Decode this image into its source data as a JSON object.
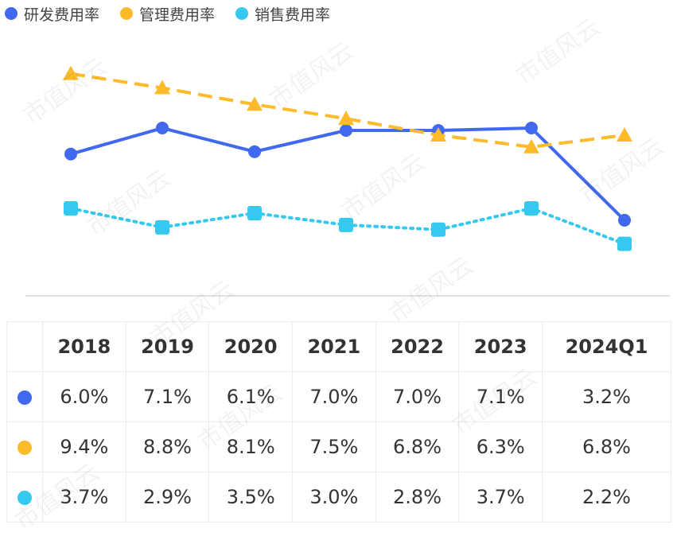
{
  "colors": {
    "rd": "#4169f0",
    "admin": "#fdbb2c",
    "sales": "#35c9f0",
    "axis": "#e3e3e3"
  },
  "watermark_text": "市值风云",
  "chart_data": {
    "type": "line",
    "categories": [
      "2018",
      "2019",
      "2020",
      "2021",
      "2022",
      "2023",
      "2024Q1"
    ],
    "series": [
      {
        "name": "研发费用率",
        "values": [
          6.0,
          7.1,
          6.1,
          7.0,
          7.0,
          7.1,
          3.2
        ],
        "labels": [
          "6.0%",
          "7.1%",
          "6.1%",
          "7.0%",
          "7.0%",
          "7.1%",
          "3.2%"
        ],
        "marker": "circle",
        "line": "solid",
        "color": "#4169f0"
      },
      {
        "name": "管理费用率",
        "values": [
          9.4,
          8.8,
          8.1,
          7.5,
          6.8,
          6.3,
          6.8
        ],
        "labels": [
          "9.4%",
          "8.8%",
          "8.1%",
          "7.5%",
          "6.8%",
          "6.3%",
          "6.8%"
        ],
        "marker": "triangle",
        "line": "dashed",
        "color": "#fdbb2c"
      },
      {
        "name": "销售费用率",
        "values": [
          3.7,
          2.9,
          3.5,
          3.0,
          2.8,
          3.7,
          2.2
        ],
        "labels": [
          "3.7%",
          "2.9%",
          "3.5%",
          "3.0%",
          "2.8%",
          "3.7%",
          "2.2%"
        ],
        "marker": "square",
        "line": "dotted",
        "color": "#35c9f0"
      }
    ],
    "ylim": [
      0,
      10.5
    ],
    "grid": false,
    "legend": "top-left"
  }
}
